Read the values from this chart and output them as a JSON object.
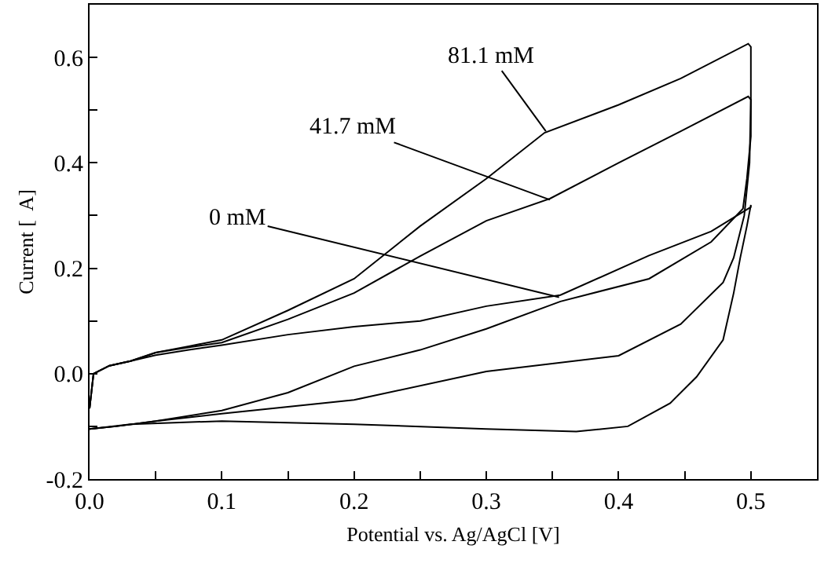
{
  "chart_data": {
    "type": "line",
    "xlabel": "Potential vs. Ag/AgCl [V]",
    "ylabel": "Current [  A]",
    "xlim": [
      0,
      0.55
    ],
    "ylim": [
      -0.2,
      0.7
    ],
    "xticks": [
      {
        "value": 0,
        "label": "0.0"
      },
      {
        "value": 0.05,
        "label": null
      },
      0.1,
      {
        "value": 0.15,
        "label": null
      },
      0.2,
      {
        "value": 0.25,
        "label": null
      },
      0.3,
      {
        "value": 0.35,
        "label": null
      },
      0.4,
      {
        "value": 0.45,
        "label": null
      },
      0.5
    ],
    "yticks": [
      -0.2,
      {
        "value": -0.1,
        "label": null
      },
      {
        "value": 0,
        "label": "0.0"
      },
      {
        "value": 0.1,
        "label": null
      },
      0.2,
      {
        "value": 0.3,
        "label": null
      },
      0.4,
      {
        "value": 0.5,
        "label": null
      },
      0.6
    ],
    "marker": "none",
    "line_style": "solid",
    "series": [
      {
        "color": "#000000",
        "x": [
          0,
          0.003,
          0.015,
          0.031,
          0.05,
          0.075,
          0.1,
          0.15,
          0.2,
          0.25,
          0.3,
          0.344,
          0.4,
          0.447,
          0.498,
          0.5,
          0.5,
          0.497,
          0.494,
          0.47,
          0.423,
          0.356,
          0.3,
          0.25,
          0.2,
          0.15,
          0.1,
          0.05,
          0.02,
          0
        ],
        "values": [
          -0.066,
          0,
          0.015,
          0.024,
          0.04,
          0.052,
          0.064,
          0.12,
          0.18,
          0.28,
          0.37,
          0.457,
          0.51,
          0.56,
          0.626,
          0.62,
          0.45,
          0.37,
          0.313,
          0.25,
          0.18,
          0.137,
          0.085,
          0.045,
          0.014,
          -0.036,
          -0.07,
          -0.09,
          -0.1,
          -0.105
        ]
      },
      {
        "color": "#000000",
        "x": [
          0,
          0.003,
          0.015,
          0.031,
          0.05,
          0.075,
          0.1,
          0.15,
          0.2,
          0.25,
          0.3,
          0.348,
          0.4,
          0.447,
          0.498,
          0.5,
          0.499,
          0.495,
          0.487,
          0.479,
          0.447,
          0.4,
          0.3,
          0.2,
          0.1,
          0.05,
          0.02,
          0
        ],
        "values": [
          -0.066,
          0,
          0.015,
          0.024,
          0.04,
          0.05,
          0.059,
          0.103,
          0.153,
          0.223,
          0.29,
          0.332,
          0.4,
          0.46,
          0.526,
          0.52,
          0.4,
          0.3,
          0.22,
          0.173,
          0.094,
          0.034,
          0.004,
          -0.05,
          -0.076,
          -0.09,
          -0.1,
          -0.105
        ]
      },
      {
        "color": "#000000",
        "x": [
          0,
          0.003,
          0.015,
          0.031,
          0.05,
          0.075,
          0.1,
          0.15,
          0.2,
          0.25,
          0.3,
          0.356,
          0.423,
          0.47,
          0.5,
          0.5,
          0.497,
          0.492,
          0.487,
          0.479,
          0.459,
          0.439,
          0.407,
          0.368,
          0.3,
          0.2,
          0.1,
          0.031,
          0
        ],
        "values": [
          -0.066,
          0,
          0.015,
          0.024,
          0.035,
          0.045,
          0.054,
          0.074,
          0.089,
          0.1,
          0.128,
          0.149,
          0.224,
          0.27,
          0.316,
          0.32,
          0.28,
          0.22,
          0.153,
          0.064,
          -0.006,
          -0.056,
          -0.1,
          -0.11,
          -0.105,
          -0.096,
          -0.09,
          -0.096,
          -0.105
        ]
      }
    ],
    "annotations": [
      {
        "text": "81.1 mM",
        "x": 0.345,
        "y": 0.46
      },
      {
        "text": "41.7 mM",
        "x": 0.348,
        "y": 0.33
      },
      {
        "text": "0 mM",
        "x": 0.355,
        "y": 0.145
      }
    ]
  }
}
